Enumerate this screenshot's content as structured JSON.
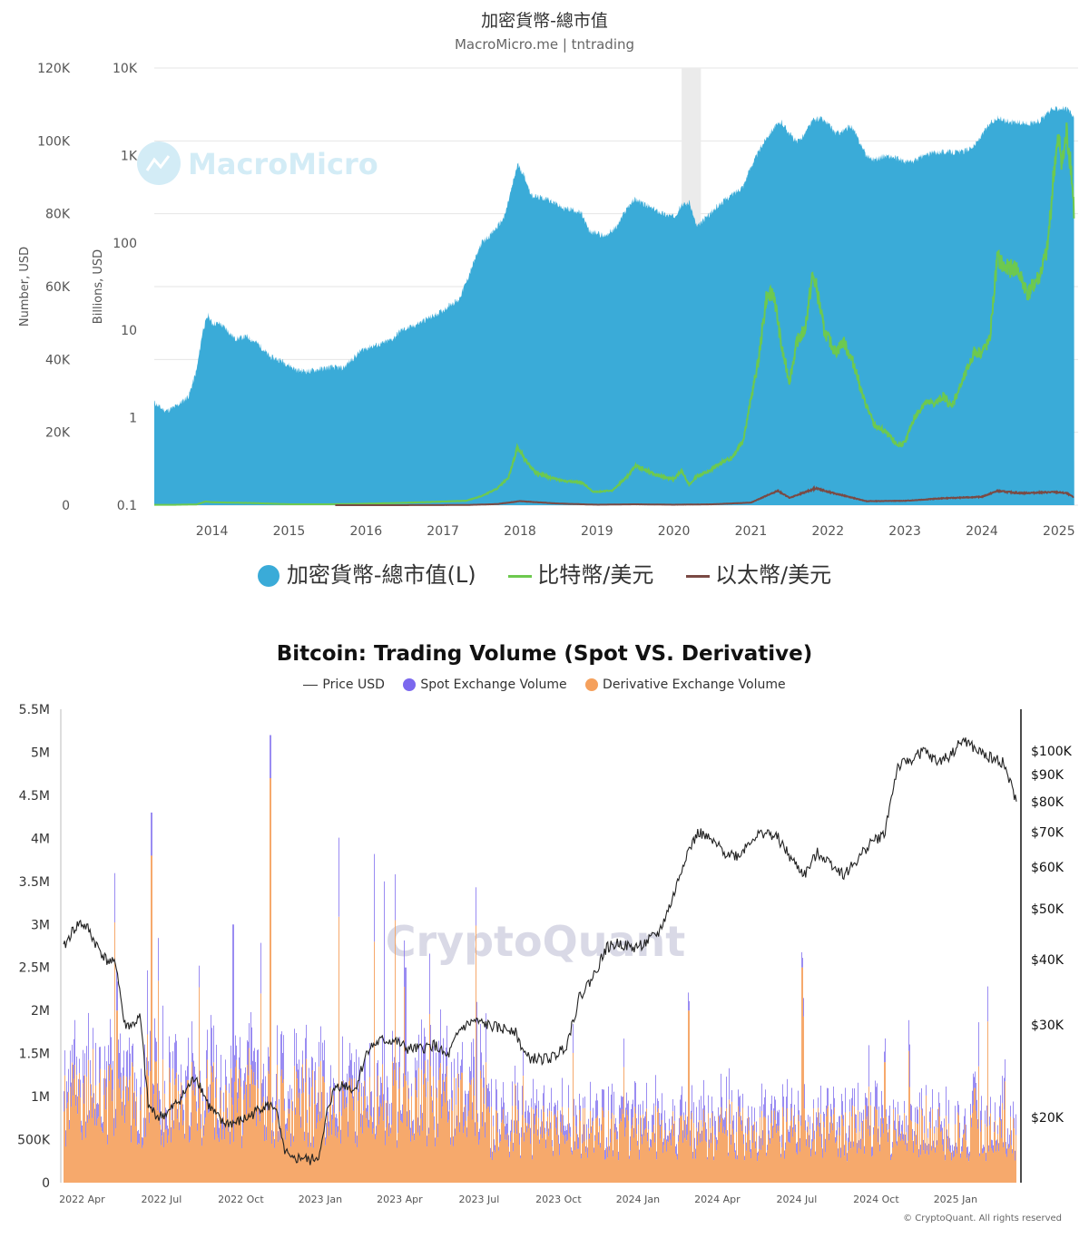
{
  "top_chart": {
    "title": "加密貨幣-總市值",
    "subtitle": "MacroMicro.me | tntrading",
    "watermark": "MacroMicro",
    "legend": [
      {
        "label": "加密貨幣-總市值(L)",
        "color": "#3aabd8",
        "shape": "dot"
      },
      {
        "label": "比特幣/美元",
        "color": "#6dc94f",
        "shape": "line"
      },
      {
        "label": "以太幣/美元",
        "color": "#7a4a44",
        "shape": "line"
      }
    ]
  },
  "bottom_chart": {
    "title": "Bitcoin: Trading Volume (Spot VS. Derivative)",
    "watermark": "CryptoQuant",
    "copyright": "© CryptoQuant. All rights reserved",
    "legend": [
      {
        "label": "Price USD",
        "color": "#333333",
        "shape": "line"
      },
      {
        "label": "Spot Exchange Volume",
        "color": "#7b68ee",
        "shape": "dot"
      },
      {
        "label": "Derivative Exchange Volume",
        "color": "#f5a05c",
        "shape": "dot"
      }
    ]
  },
  "chart_data": [
    {
      "type": "area",
      "title": "加密貨幣-總市值",
      "subtitle": "MacroMicro.me | tntrading",
      "ylabel_left": "Number, USD",
      "ylabel_right": "Billions, USD",
      "x_ticks": [
        "2014",
        "2015",
        "2016",
        "2017",
        "2018",
        "2019",
        "2020",
        "2021",
        "2022",
        "2023",
        "2024",
        "2025"
      ],
      "y_left_ticks": [
        "0",
        "20K",
        "40K",
        "60K",
        "80K",
        "100K",
        "120K"
      ],
      "y_left_range": [
        0,
        120000
      ],
      "y_right_ticks": [
        "0.1",
        "1",
        "10",
        "100",
        "1K",
        "10K"
      ],
      "y_right_range": [
        0.1,
        10000
      ],
      "y_right_scale": "log",
      "x_range": [
        2013.25,
        2025.25
      ],
      "shaded_period": [
        2020.1,
        2020.35
      ],
      "legend_position": "bottom",
      "grid": true,
      "series": [
        {
          "name": "加密貨幣-總市值(L)",
          "axis": "right",
          "color": "#3aabd8",
          "x": [
            2013.25,
            2013.33,
            2013.4,
            2013.5,
            2013.6,
            2013.7,
            2013.8,
            2013.88,
            2013.95,
            2014.0,
            2014.1,
            2014.2,
            2014.3,
            2014.45,
            2014.6,
            2014.75,
            2014.9,
            2015.0,
            2015.1,
            2015.25,
            2015.4,
            2015.55,
            2015.7,
            2015.8,
            2015.95,
            2016.05,
            2016.2,
            2016.35,
            2016.45,
            2016.6,
            2016.75,
            2016.9,
            2017.0,
            2017.1,
            2017.2,
            2017.3,
            2017.4,
            2017.5,
            2017.6,
            2017.7,
            2017.8,
            2017.9,
            2017.97,
            2018.05,
            2018.15,
            2018.25,
            2018.35,
            2018.45,
            2018.55,
            2018.7,
            2018.8,
            2018.9,
            2019.0,
            2019.1,
            2019.25,
            2019.4,
            2019.5,
            2019.6,
            2019.75,
            2019.9,
            2020.0,
            2020.1,
            2020.2,
            2020.3,
            2020.4,
            2020.5,
            2020.6,
            2020.7,
            2020.8,
            2020.9,
            2021.0,
            2021.1,
            2021.2,
            2021.3,
            2021.4,
            2021.5,
            2021.6,
            2021.7,
            2021.8,
            2021.9,
            2022.0,
            2022.1,
            2022.2,
            2022.3,
            2022.4,
            2022.5,
            2022.6,
            2022.75,
            2022.9,
            2023.0,
            2023.1,
            2023.25,
            2023.4,
            2023.5,
            2023.6,
            2023.75,
            2023.9,
            2024.0,
            2024.1,
            2024.2,
            2024.3,
            2024.45,
            2024.6,
            2024.75,
            2024.9,
            2025.0,
            2025.05,
            2025.12,
            2025.2
          ],
          "values": [
            1.5,
            1.3,
            1.2,
            1.3,
            1.5,
            1.8,
            3.5,
            10,
            15,
            12,
            12,
            10,
            8,
            8.5,
            7,
            5,
            4.5,
            4,
            3.5,
            3.4,
            3.6,
            3.8,
            3.7,
            4.5,
            6,
            6.5,
            7,
            8,
            10,
            11,
            13,
            15,
            17,
            20,
            22,
            35,
            60,
            100,
            120,
            150,
            200,
            450,
            800,
            600,
            350,
            330,
            320,
            290,
            250,
            240,
            215,
            135,
            130,
            120,
            150,
            260,
            320,
            280,
            240,
            210,
            200,
            270,
            290,
            150,
            190,
            230,
            280,
            330,
            380,
            450,
            750,
            1100,
            1600,
            2100,
            2400,
            1800,
            1400,
            1800,
            2500,
            2700,
            2300,
            1800,
            1900,
            2200,
            1500,
            1000,
            900,
            1000,
            920,
            850,
            850,
            1000,
            1100,
            1100,
            1100,
            1100,
            1300,
            1700,
            2300,
            2700,
            2500,
            2400,
            2300,
            2500,
            3300,
            3500,
            3500,
            3300,
            2700
          ]
        },
        {
          "name": "比特幣/美元",
          "axis": "left",
          "color": "#6dc94f",
          "x": [
            2013.25,
            2013.5,
            2013.8,
            2013.92,
            2014.0,
            2014.5,
            2015.0,
            2015.5,
            2016.0,
            2016.5,
            2017.0,
            2017.3,
            2017.5,
            2017.7,
            2017.85,
            2017.97,
            2018.05,
            2018.2,
            2018.4,
            2018.6,
            2018.8,
            2018.95,
            2019.0,
            2019.2,
            2019.4,
            2019.5,
            2019.6,
            2019.75,
            2019.9,
            2020.0,
            2020.1,
            2020.2,
            2020.3,
            2020.45,
            2020.6,
            2020.75,
            2020.9,
            2021.0,
            2021.1,
            2021.2,
            2021.3,
            2021.4,
            2021.5,
            2021.6,
            2021.7,
            2021.8,
            2021.85,
            2021.95,
            2022.0,
            2022.1,
            2022.2,
            2022.35,
            2022.45,
            2022.6,
            2022.75,
            2022.9,
            2023.0,
            2023.1,
            2023.25,
            2023.4,
            2023.5,
            2023.6,
            2023.75,
            2023.9,
            2024.0,
            2024.1,
            2024.2,
            2024.3,
            2024.45,
            2024.6,
            2024.75,
            2024.85,
            2024.95,
            2025.0,
            2025.05,
            2025.1,
            2025.15,
            2025.2
          ],
          "values": [
            100,
            100,
            200,
            1000,
            800,
            600,
            250,
            250,
            400,
            650,
            1000,
            1200,
            2500,
            4500,
            7500,
            16000,
            13000,
            9000,
            7500,
            6500,
            6300,
            3700,
            3700,
            4000,
            8000,
            11000,
            10000,
            8500,
            7500,
            7200,
            9500,
            5500,
            8000,
            9200,
            11500,
            13000,
            18000,
            29000,
            40000,
            57000,
            58000,
            43000,
            34000,
            45000,
            48000,
            63000,
            60000,
            48000,
            46000,
            42000,
            45000,
            38000,
            30000,
            22000,
            20000,
            16500,
            17000,
            23000,
            28000,
            28000,
            30000,
            27000,
            34000,
            42000,
            42000,
            45000,
            68000,
            65000,
            65000,
            58000,
            63000,
            70000,
            95000,
            100000,
            94000,
            102000,
            95000,
            80000
          ]
        },
        {
          "name": "以太幣/美元",
          "axis": "left",
          "color": "#7a4a44",
          "x": [
            2015.6,
            2016.5,
            2017.3,
            2017.7,
            2018.0,
            2018.5,
            2019.0,
            2019.5,
            2020.0,
            2020.5,
            2021.0,
            2021.35,
            2021.5,
            2021.85,
            2022.0,
            2022.5,
            2023.0,
            2023.5,
            2024.0,
            2024.2,
            2024.5,
            2024.95,
            2025.1,
            2025.2
          ],
          "values": [
            1,
            10,
            50,
            300,
            1100,
            450,
            130,
            250,
            130,
            250,
            700,
            4000,
            2000,
            4700,
            3700,
            1100,
            1200,
            1900,
            2300,
            3900,
            3300,
            3600,
            3300,
            2100
          ]
        }
      ]
    },
    {
      "type": "bar",
      "title": "Bitcoin: Trading Volume (Spot VS. Derivative)",
      "x_ticks": [
        "2022 Apr",
        "2022 Jul",
        "2022 Oct",
        "2023 Jan",
        "2023 Apr",
        "2023 Jul",
        "2023 Oct",
        "2024 Jan",
        "2024 Apr",
        "2024 Jul",
        "2024 Oct",
        "2025 Jan"
      ],
      "y_left_ticks": [
        "0",
        "500K",
        "1M",
        "1.5M",
        "2M",
        "2.5M",
        "3M",
        "3.5M",
        "4M",
        "4.5M",
        "5M",
        "5.5M"
      ],
      "y_left_range": [
        0,
        5500000
      ],
      "y_right_ticks": [
        "$20K",
        "$30K",
        "$40K",
        "$50K",
        "$60K",
        "$70K",
        "$80K",
        "$90K",
        "$100K"
      ],
      "y_right_scale": "log",
      "y_right_range": [
        15000,
        120000
      ],
      "legend_position": "top",
      "x_range_months": [
        0,
        36
      ],
      "series": [
        {
          "name": "Price USD",
          "type": "line",
          "axis": "right",
          "color": "#222222",
          "x": [
            0,
            0.3,
            0.6,
            0.9,
            1.2,
            1.6,
            2.0,
            2.3,
            2.6,
            2.9,
            3.2,
            3.6,
            4.0,
            4.5,
            5.0,
            5.5,
            6.0,
            6.5,
            7.0,
            7.5,
            8.0,
            8.3,
            8.6,
            9.0,
            9.3,
            9.7,
            10.0,
            10.3,
            10.7,
            11.0,
            11.5,
            12.0,
            12.5,
            13.0,
            13.5,
            14.0,
            14.5,
            15.0,
            15.5,
            16.0,
            16.5,
            17.0,
            17.5,
            18.0,
            18.5,
            19.0,
            19.5,
            20.0,
            20.5,
            21.0,
            21.5,
            22.0,
            22.5,
            23.0,
            23.5,
            24.0,
            24.5,
            25.0,
            25.5,
            26.0,
            26.5,
            27.0,
            27.5,
            28.0,
            28.5,
            29.0,
            29.5,
            30.0,
            30.5,
            31.0,
            31.5,
            32.0,
            32.5,
            33.0,
            33.5,
            34.0,
            34.5,
            35.0,
            35.5,
            36.0
          ],
          "values": [
            42000,
            45000,
            47000,
            46000,
            43000,
            40000,
            39000,
            30000,
            30000,
            31000,
            21000,
            20000,
            20500,
            22000,
            24000,
            21000,
            19500,
            19500,
            20000,
            21000,
            21000,
            17500,
            16500,
            16800,
            16500,
            17000,
            21000,
            23000,
            23000,
            22500,
            27000,
            28000,
            28000,
            27000,
            27000,
            27500,
            26000,
            29500,
            30500,
            30000,
            29500,
            29500,
            26000,
            25800,
            26000,
            27500,
            34000,
            37000,
            42000,
            43000,
            42000,
            43000,
            45000,
            52000,
            63000,
            70000,
            67000,
            64000,
            63000,
            68000,
            70000,
            68000,
            62000,
            58000,
            64000,
            61000,
            58000,
            62000,
            67000,
            69000,
            93000,
            96000,
            100000,
            95000,
            98000,
            105000,
            100000,
            97000,
            95000,
            80000
          ]
        },
        {
          "name": "Spot Exchange Volume",
          "axis": "left",
          "color": "#7b68ee",
          "peaks": [
            {
              "x": 3.3,
              "value": 4300000
            },
            {
              "x": 7.8,
              "value": 5200000
            },
            {
              "x": 12.1,
              "value": 3500000
            },
            {
              "x": 6.4,
              "value": 3000000
            },
            {
              "x": 12.9,
              "value": 2500000
            },
            {
              "x": 15.6,
              "value": 2100000
            }
          ]
        },
        {
          "name": "Derivative Exchange Volume",
          "axis": "left",
          "color": "#f5a05c",
          "peaks": [
            {
              "x": 3.3,
              "value": 3800000
            },
            {
              "x": 7.8,
              "value": 4700000
            },
            {
              "x": 2.0,
              "value": 2000000
            },
            {
              "x": 27.9,
              "value": 2500000
            },
            {
              "x": 23.6,
              "value": 2000000
            },
            {
              "x": 31.0,
              "value": 1400000
            },
            {
              "x": 34.4,
              "value": 1100000
            }
          ],
          "typical_range": [
            300000,
            1000000
          ]
        }
      ]
    }
  ]
}
